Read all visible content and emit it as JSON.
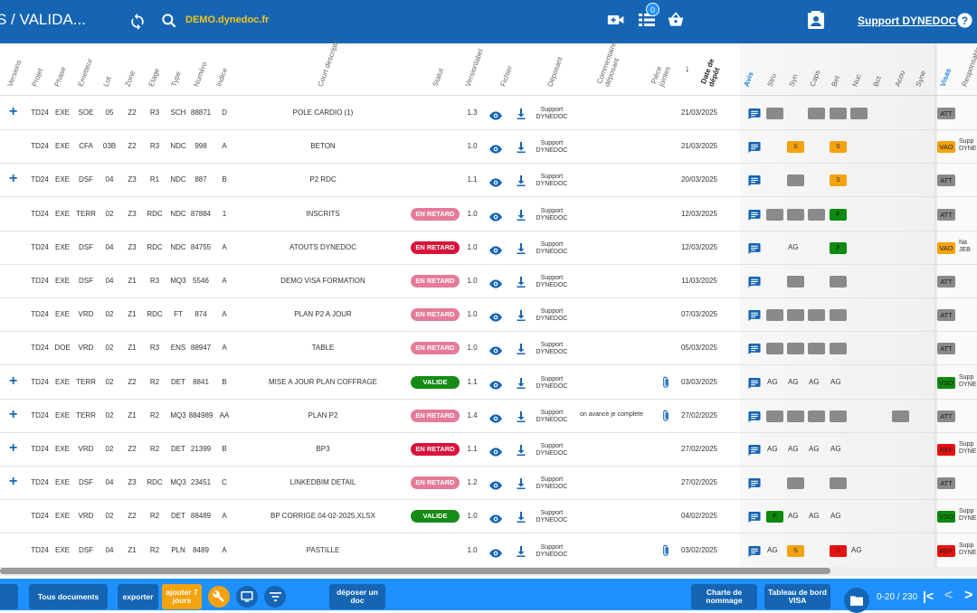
{
  "topbar": {
    "title": "S / VALIDA...",
    "domain_label": "DEMO.dynedoc.fr",
    "badge_count": "0",
    "support_label": "Support DYNEDOC",
    "icons": [
      "sync-icon",
      "search-icon",
      "video-add-icon",
      "list-icon",
      "basket-icon",
      "contact-card-icon",
      "help-icon"
    ]
  },
  "columns": {
    "versions": "Versions",
    "projet": "Projet",
    "phase": "Phase",
    "emetteur": "Emetteur",
    "lot": "Lot",
    "zone": "Zone",
    "etage": "Etage",
    "type": "Type",
    "numero": "Numéro",
    "indice": "Indice",
    "court_descriptif": "Court descriptif",
    "statut": "Statut",
    "versionlabel": "Versionlabel",
    "fichier": "Fichier",
    "deposant": "Déposant",
    "commentaires": "Commentaires déposant",
    "pieces_jointes": "Pièce jointes",
    "date_depot": "Date de dépôt",
    "avis": "Avis",
    "stru": "Stru",
    "syn": "Syn",
    "caps": "Caps",
    "bet": "Bet",
    "nuc": "Nuc",
    "bct": "Bct",
    "acou": "Acou",
    "syne": "Syne",
    "visas": "Visas",
    "responsable": "Responsable"
  },
  "rows": [
    {
      "plus": "+",
      "projet": "TD24",
      "phase": "EXE",
      "emetteur": "SOE",
      "lot": "05",
      "zone": "Z2",
      "etage": "R3",
      "type": "SCH",
      "numero": "88871",
      "indice": "D",
      "descriptif": "POLE CARDIO (1)",
      "statut": "",
      "version": "1.3",
      "deposant_l1": "Support",
      "deposant_l2": "DYNEDOC",
      "commentaire": "",
      "clip": false,
      "date": "21/03/2025",
      "avis": [
        {
          "k": "g",
          "t": ""
        },
        null,
        {
          "k": "g",
          "t": ""
        },
        {
          "k": "g",
          "t": ""
        },
        {
          "k": "g",
          "t": ""
        }
      ],
      "visa": "ATT",
      "visa_k": "g",
      "resp_l1": "",
      "resp_l2": ""
    },
    {
      "plus": "",
      "projet": "TD24",
      "phase": "EXE",
      "emetteur": "CFA",
      "lot": "03B",
      "zone": "Z2",
      "etage": "R3",
      "type": "NDC",
      "numero": "998",
      "indice": "A",
      "descriptif": "BETON",
      "statut": "",
      "version": "1.0",
      "deposant_l1": "Support",
      "deposant_l2": "DYNEDOC",
      "commentaire": "",
      "clip": false,
      "date": "21/03/2025",
      "avis": [
        null,
        {
          "k": "o",
          "t": "S"
        },
        null,
        {
          "k": "o",
          "t": "S"
        }
      ],
      "visa": "VAO",
      "visa_k": "o",
      "resp_l1": "Supp",
      "resp_l2": "DYNE"
    },
    {
      "plus": "+",
      "projet": "TD24",
      "phase": "EXE",
      "emetteur": "DSF",
      "lot": "04",
      "zone": "Z3",
      "etage": "R1",
      "type": "NDC",
      "numero": "887",
      "indice": "B",
      "descriptif": "P2 RDC",
      "statut": "",
      "version": "1.1",
      "deposant_l1": "Support",
      "deposant_l2": "DYNEDOC",
      "commentaire": "",
      "clip": false,
      "date": "20/03/2025",
      "avis": [
        null,
        {
          "k": "g",
          "t": ""
        },
        null,
        {
          "k": "o",
          "t": "S"
        }
      ],
      "visa": "ATT",
      "visa_k": "g",
      "resp_l1": "",
      "resp_l2": ""
    },
    {
      "plus": "",
      "projet": "TD24",
      "phase": "EXE",
      "emetteur": "TERR",
      "lot": "02",
      "zone": "Z3",
      "etage": "RDC",
      "type": "NDC",
      "numero": "87884",
      "indice": "1",
      "descriptif": "INSCRITS",
      "statut": "EN RETARD",
      "statut_k": "late",
      "version": "1.0",
      "deposant_l1": "Support",
      "deposant_l2": "DYNEDOC",
      "commentaire": "",
      "clip": false,
      "date": "12/03/2025",
      "avis": [
        {
          "k": "g",
          "t": ""
        },
        {
          "k": "g",
          "t": ""
        },
        {
          "k": "g",
          "t": ""
        },
        {
          "k": "gr",
          "t": "F"
        }
      ],
      "visa": "ATT",
      "visa_k": "g",
      "resp_l1": "",
      "resp_l2": ""
    },
    {
      "plus": "",
      "projet": "TD24",
      "phase": "EXE",
      "emetteur": "DSF",
      "lot": "04",
      "zone": "Z3",
      "etage": "RDC",
      "type": "NDC",
      "numero": "84755",
      "indice": "A",
      "descriptif": "ATOUTS DYNEDOC",
      "statut": "EN RETARD",
      "statut_k": "late2",
      "version": "1.0",
      "deposant_l1": "Support",
      "deposant_l2": "DYNEDOC",
      "commentaire": "",
      "clip": false,
      "date": "12/03/2025",
      "avis": [
        null,
        {
          "k": "ag",
          "t": "AG"
        },
        null,
        {
          "k": "gr",
          "t": "F"
        }
      ],
      "visa": "VAO",
      "visa_k": "o",
      "resp_l1": "Na",
      "resp_l2": "JEB"
    },
    {
      "plus": "",
      "projet": "TD24",
      "phase": "EXE",
      "emetteur": "DSF",
      "lot": "04",
      "zone": "Z1",
      "etage": "R3",
      "type": "MQ3",
      "numero": "5546",
      "indice": "A",
      "descriptif": "DEMO VISA FORMATION",
      "statut": "EN RETARD",
      "statut_k": "late",
      "version": "1.0",
      "deposant_l1": "Support",
      "deposant_l2": "DYNEDOC",
      "commentaire": "",
      "clip": false,
      "date": "11/03/2025",
      "avis": [
        null,
        {
          "k": "g",
          "t": ""
        },
        null,
        {
          "k": "g",
          "t": ""
        }
      ],
      "visa": "ATT",
      "visa_k": "g",
      "resp_l1": "",
      "resp_l2": ""
    },
    {
      "plus": "",
      "projet": "TD24",
      "phase": "EXE",
      "emetteur": "VRD",
      "lot": "02",
      "zone": "Z1",
      "etage": "RDC",
      "type": "FT",
      "numero": "874",
      "indice": "A",
      "descriptif": "PLAN P2 A JOUR",
      "statut": "EN RETARD",
      "statut_k": "late",
      "version": "1.0",
      "deposant_l1": "Support",
      "deposant_l2": "DYNEDOC",
      "commentaire": "",
      "clip": false,
      "date": "07/03/2025",
      "avis": [
        {
          "k": "g",
          "t": ""
        },
        {
          "k": "g",
          "t": ""
        },
        {
          "k": "g",
          "t": ""
        },
        {
          "k": "g",
          "t": ""
        }
      ],
      "visa": "ATT",
      "visa_k": "g",
      "resp_l1": "",
      "resp_l2": ""
    },
    {
      "plus": "",
      "projet": "TD24",
      "phase": "DOE",
      "emetteur": "VRD",
      "lot": "02",
      "zone": "Z1",
      "etage": "R3",
      "type": "ENS",
      "numero": "88947",
      "indice": "A",
      "descriptif": "TABLE",
      "statut": "EN RETARD",
      "statut_k": "late",
      "version": "1.0",
      "deposant_l1": "Support",
      "deposant_l2": "DYNEDOC",
      "commentaire": "",
      "clip": false,
      "date": "05/03/2025",
      "avis": [
        {
          "k": "g",
          "t": ""
        },
        {
          "k": "g",
          "t": ""
        },
        {
          "k": "g",
          "t": ""
        },
        {
          "k": "g",
          "t": ""
        }
      ],
      "visa": "ATT",
      "visa_k": "g",
      "resp_l1": "",
      "resp_l2": ""
    },
    {
      "plus": "+",
      "projet": "TD24",
      "phase": "EXE",
      "emetteur": "TERR",
      "lot": "02",
      "zone": "Z2",
      "etage": "R2",
      "type": "DET",
      "numero": "8841",
      "indice": "B",
      "descriptif": "MISE A JOUR PLAN COFFRAGE",
      "statut": "VALIDE",
      "statut_k": "ok",
      "version": "1.1",
      "deposant_l1": "Support",
      "deposant_l2": "DYNEDOC",
      "commentaire": "",
      "clip": true,
      "date": "03/03/2025",
      "avis": [
        {
          "k": "ag",
          "t": "AG"
        },
        {
          "k": "ag",
          "t": "AG"
        },
        {
          "k": "ag",
          "t": "AG"
        },
        {
          "k": "ag",
          "t": "AG"
        }
      ],
      "visa": "VSO",
      "visa_k": "gr",
      "resp_l1": "Supp",
      "resp_l2": "DYNE"
    },
    {
      "plus": "+",
      "projet": "TD24",
      "phase": "EXE",
      "emetteur": "TERR",
      "lot": "02",
      "zone": "Z1",
      "etage": "R2",
      "type": "MQ3",
      "numero": "884989",
      "indice": "AA",
      "descriptif": "PLAN P2",
      "statut": "EN RETARD",
      "statut_k": "late",
      "version": "1.4",
      "deposant_l1": "Support",
      "deposant_l2": "DYNEDOC",
      "commentaire": "on avance je complete",
      "clip": true,
      "date": "27/02/2025",
      "avis": [
        {
          "k": "g",
          "t": ""
        },
        {
          "k": "g",
          "t": ""
        },
        {
          "k": "g",
          "t": ""
        },
        {
          "k": "g",
          "t": ""
        },
        null,
        null,
        {
          "k": "g",
          "t": ""
        }
      ],
      "visa": "ATT",
      "visa_k": "g",
      "resp_l1": "",
      "resp_l2": ""
    },
    {
      "plus": "+",
      "projet": "TD24",
      "phase": "EXE",
      "emetteur": "VRD",
      "lot": "02",
      "zone": "Z2",
      "etage": "R2",
      "type": "DET",
      "numero": "21399",
      "indice": "B",
      "descriptif": "BP3",
      "statut": "EN RETARD",
      "statut_k": "late2",
      "version": "1.1",
      "deposant_l1": "Support",
      "deposant_l2": "DYNEDOC",
      "commentaire": "",
      "clip": false,
      "date": "27/02/2025",
      "avis": [
        {
          "k": "ag",
          "t": "AG"
        },
        {
          "k": "ag",
          "t": "AG"
        },
        {
          "k": "ag",
          "t": "AG"
        },
        {
          "k": "ag",
          "t": "AG"
        }
      ],
      "visa": "REF",
      "visa_k": "rd",
      "resp_l1": "Supp",
      "resp_l2": "DYNE"
    },
    {
      "plus": "+",
      "projet": "TD24",
      "phase": "EXE",
      "emetteur": "DSF",
      "lot": "04",
      "zone": "Z3",
      "etage": "RDC",
      "type": "MQ3",
      "numero": "23451",
      "indice": "C",
      "descriptif": "LINKEDBIM DETAIL",
      "statut": "EN RETARD",
      "statut_k": "late",
      "version": "1.2",
      "deposant_l1": "Support",
      "deposant_l2": "DYNEDOC",
      "commentaire": "",
      "clip": false,
      "date": "27/02/2025",
      "avis": [
        null,
        {
          "k": "g",
          "t": ""
        },
        null,
        {
          "k": "g",
          "t": ""
        }
      ],
      "visa": "ATT",
      "visa_k": "g",
      "resp_l1": "",
      "resp_l2": ""
    },
    {
      "plus": "",
      "projet": "TD24",
      "phase": "EXE",
      "emetteur": "VRD",
      "lot": "02",
      "zone": "Z2",
      "etage": "R2",
      "type": "DET",
      "numero": "88489",
      "indice": "A",
      "descriptif": "BP CORRIGE 04-02-2025.XLSX",
      "statut": "VALIDE",
      "statut_k": "ok",
      "version": "1.0",
      "deposant_l1": "Support",
      "deposant_l2": "DYNEDOC",
      "commentaire": "",
      "clip": false,
      "date": "04/02/2025",
      "avis": [
        {
          "k": "gr",
          "t": "F"
        },
        {
          "k": "ag",
          "t": "AG"
        },
        {
          "k": "ag",
          "t": "AG"
        },
        {
          "k": "ag",
          "t": "AG"
        }
      ],
      "visa": "VSO",
      "visa_k": "gr",
      "resp_l1": "Supp",
      "resp_l2": "DYNE"
    },
    {
      "plus": "",
      "projet": "TD24",
      "phase": "EXE",
      "emetteur": "DSF",
      "lot": "04",
      "zone": "Z1",
      "etage": "R2",
      "type": "PLN",
      "numero": "8489",
      "indice": "A",
      "descriptif": "PASTILLE",
      "statut": "",
      "version": "1.0",
      "deposant_l1": "Support",
      "deposant_l2": "DYNEDOC",
      "commentaire": "",
      "clip": true,
      "date": "03/02/2025",
      "avis": [
        {
          "k": "ag",
          "t": "AG"
        },
        {
          "k": "o",
          "t": "S"
        },
        null,
        {
          "k": "rd",
          "t": "D"
        },
        {
          "k": "ag",
          "t": "AG"
        }
      ],
      "visa": "REF",
      "visa_k": "rd",
      "resp_l1": "Supp",
      "resp_l2": "DYNE"
    }
  ],
  "bottom": {
    "tous_documents": "Tous documents",
    "exporter": "exporter",
    "ajouter_l1": "ajouter 7",
    "ajouter_l2": "jours",
    "deposer_l1": "déposer un",
    "deposer_l2": "doc",
    "charte_l1": "Charte de",
    "charte_l2": "nommage",
    "tableau_l1": "Tableau de bord",
    "tableau_l2": "VISA",
    "pager": "0-20 / 230"
  },
  "colors": {
    "topbar": "#1565b4",
    "bottom": "#1e90ff",
    "late": "#e57b98",
    "late_strong": "#d8143c",
    "valid": "#168c16",
    "orange": "#f5a20f",
    "grey": "#8a8a8a",
    "red": "#e81010",
    "green": "#0e8a0e"
  }
}
